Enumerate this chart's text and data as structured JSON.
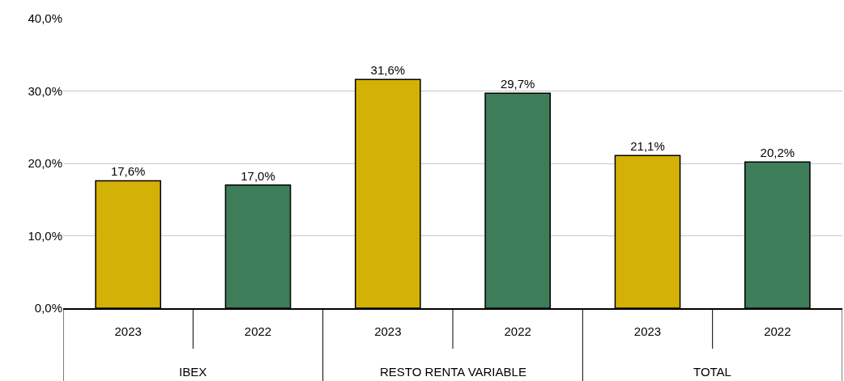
{
  "chart_data": {
    "type": "bar",
    "categories": [
      "2023",
      "2022",
      "2023",
      "2022",
      "2023",
      "2022"
    ],
    "values": [
      17.6,
      17.0,
      31.6,
      29.7,
      21.1,
      20.2
    ],
    "colors": [
      "#d4b106",
      "#3d7d5a",
      "#d4b106",
      "#3d7d5a",
      "#d4b106",
      "#3d7d5a"
    ],
    "value_labels": [
      "17,6%",
      "17,0%",
      "31,6%",
      "29,7%",
      "21,1%",
      "20,2%"
    ],
    "annotations": [
      "IBEX",
      "RESTO RENTA VARIABLE",
      "TOTAL"
    ],
    "ylim": [
      0,
      40
    ],
    "yticks": [
      {
        "value": 0,
        "label": "0,0%"
      },
      {
        "value": 10,
        "label": "10,0%"
      },
      {
        "value": 20,
        "label": "20,0%"
      },
      {
        "value": 30,
        "label": "30,0%"
      },
      {
        "value": 40,
        "label": "40,0%"
      }
    ],
    "grid": "y",
    "legend": false
  }
}
